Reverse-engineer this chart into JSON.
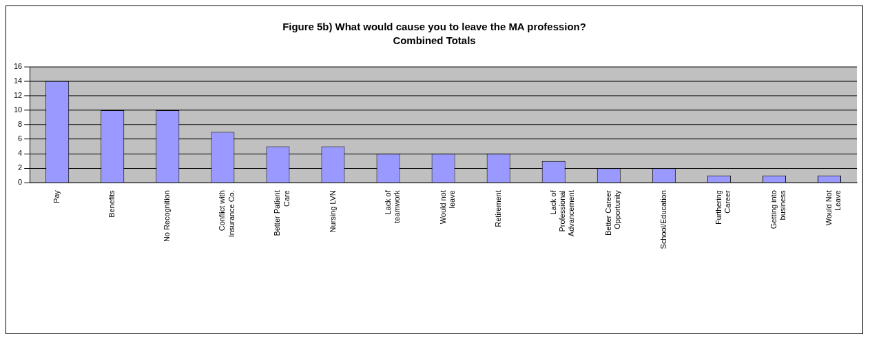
{
  "chart_data": {
    "type": "bar",
    "title": "Figure 5b) What would cause you to leave the MA profession?",
    "subtitle": "Combined Totals",
    "categories": [
      "Pay",
      "Benefits",
      "No Recognition",
      "Conflict with Insurance Co.",
      "Better Patient Care",
      "Nursing LVN",
      "Lack of teamwork",
      "Would not leave",
      "Retirement",
      "Lack of Professional Advancement",
      "Better Career Opportunity",
      "School/Education",
      "Furthering Career",
      "Getting into business",
      "Would Not Leave"
    ],
    "values": [
      14,
      10,
      10,
      7,
      5,
      5,
      4,
      4,
      4,
      3,
      2,
      2,
      1,
      1,
      1
    ],
    "color": "#9999ff",
    "ylim": [
      0,
      16
    ],
    "yticks": [
      0,
      2,
      4,
      6,
      8,
      10,
      12,
      14,
      16
    ],
    "grid": "y",
    "legend": false
  }
}
